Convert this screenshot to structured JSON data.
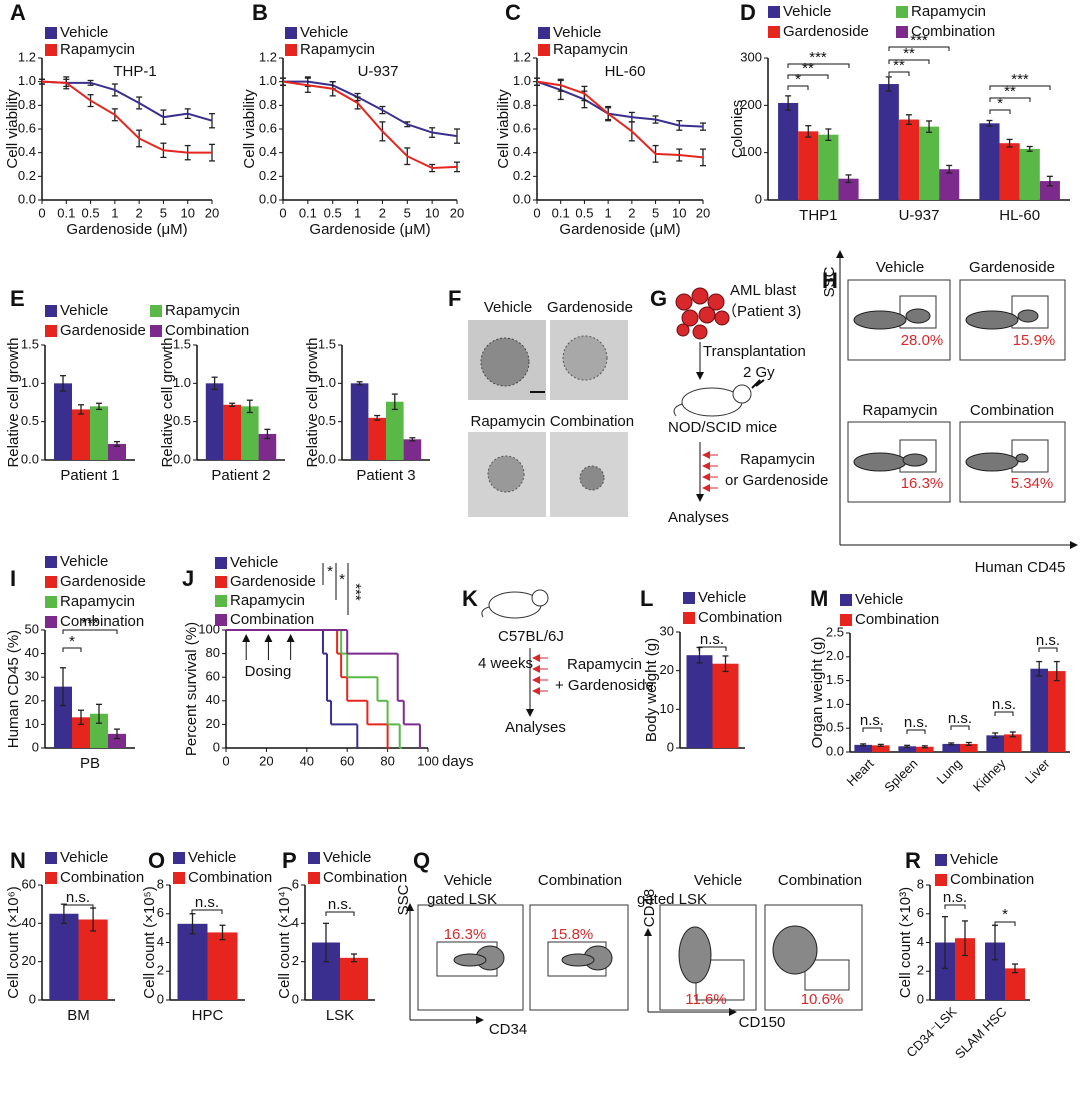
{
  "panel_labels": [
    "A",
    "B",
    "C",
    "D",
    "E",
    "F",
    "G",
    "H",
    "I",
    "J",
    "K",
    "L",
    "M",
    "N",
    "O",
    "P",
    "Q",
    "R"
  ],
  "chart_data": [
    {
      "type": "line",
      "title": "THP-1",
      "xlabel": "Gardenoside (μM)",
      "ylabel": "Cell viability",
      "categories": [
        "0",
        "0.1",
        "0.5",
        "1",
        "2",
        "5",
        "10",
        "20"
      ],
      "ylim": [
        0,
        1.2
      ],
      "yticks": [
        {
          "value": 0,
          "label": "0.0"
        },
        0.2,
        0.4,
        0.6,
        0.8,
        {
          "value": 1,
          "label": "1.0"
        },
        1.2
      ],
      "series": [
        {
          "name": "Vehicle",
          "color": "#3a2f8f",
          "values": [
            1.0,
            0.99,
            0.99,
            0.93,
            0.82,
            0.7,
            0.73,
            0.67
          ],
          "errors": [
            0.02,
            0.05,
            0.02,
            0.05,
            0.05,
            0.06,
            0.04,
            0.06
          ]
        },
        {
          "name": "Rapamycin",
          "color": "#e6251f",
          "values": [
            1.0,
            0.99,
            0.84,
            0.72,
            0.52,
            0.42,
            0.4,
            0.4
          ],
          "errors": [
            0.02,
            0.03,
            0.05,
            0.05,
            0.07,
            0.06,
            0.06,
            0.07
          ]
        }
      ]
    },
    {
      "type": "line",
      "title": "U-937",
      "xlabel": "Gardenoside (μM)",
      "ylabel": "Cell viability",
      "categories": [
        "0",
        "0.1",
        "0.5",
        "1",
        "2",
        "5",
        "10",
        "20"
      ],
      "ylim": [
        0,
        1.2
      ],
      "yticks": [
        {
          "value": 0,
          "label": "0.0"
        },
        0.2,
        0.4,
        0.6,
        0.8,
        {
          "value": 1,
          "label": "1.0"
        },
        1.2
      ],
      "series": [
        {
          "name": "Vehicle",
          "color": "#3a2f8f",
          "values": [
            1.0,
            1.0,
            0.97,
            0.87,
            0.76,
            0.64,
            0.57,
            0.54
          ],
          "errors": [
            0.03,
            0.04,
            0.03,
            0.03,
            0.03,
            0.02,
            0.04,
            0.06
          ]
        },
        {
          "name": "Rapamycin",
          "color": "#e6251f",
          "values": [
            1.0,
            0.97,
            0.94,
            0.82,
            0.58,
            0.37,
            0.27,
            0.28
          ],
          "errors": [
            0.03,
            0.06,
            0.06,
            0.05,
            0.08,
            0.07,
            0.03,
            0.04
          ]
        }
      ]
    },
    {
      "type": "line",
      "title": "HL-60",
      "xlabel": "Gardenoside (μM)",
      "ylabel": "Cell viability",
      "categories": [
        "0",
        "0.1",
        "0.5",
        "1",
        "2",
        "5",
        "10",
        "20"
      ],
      "ylim": [
        0,
        1.2
      ],
      "yticks": [
        {
          "value": 0,
          "label": "0.0"
        },
        0.2,
        0.4,
        0.6,
        0.8,
        {
          "value": 1,
          "label": "1.0"
        },
        1.2
      ],
      "series": [
        {
          "name": "Vehicle",
          "color": "#3a2f8f",
          "values": [
            1.0,
            0.93,
            0.85,
            0.73,
            0.7,
            0.68,
            0.63,
            0.62
          ],
          "errors": [
            0.03,
            0.08,
            0.07,
            0.05,
            0.04,
            0.03,
            0.04,
            0.03
          ]
        },
        {
          "name": "Rapamycin",
          "color": "#e6251f",
          "values": [
            1.0,
            0.97,
            0.9,
            0.73,
            0.58,
            0.39,
            0.38,
            0.36
          ],
          "errors": [
            0.03,
            0.05,
            0.06,
            0.06,
            0.08,
            0.07,
            0.05,
            0.07
          ]
        }
      ]
    },
    {
      "type": "bar",
      "ylabel": "Colonies",
      "categories": [
        "THP1",
        "U-937",
        "HL-60"
      ],
      "ylim": [
        0,
        300
      ],
      "yticks": [
        0,
        100,
        200,
        300
      ],
      "series": [
        {
          "name": "Vehicle",
          "color": "#3a2f8f",
          "values": [
            205,
            245,
            162
          ],
          "errors": [
            15,
            15,
            6
          ]
        },
        {
          "name": "Gardenoside",
          "color": "#e6251f",
          "values": [
            145,
            170,
            120
          ],
          "errors": [
            12,
            10,
            8
          ]
        },
        {
          "name": "Rapamycin",
          "color": "#5ab946",
          "values": [
            138,
            155,
            108
          ],
          "errors": [
            12,
            12,
            5
          ]
        },
        {
          "name": "Combination",
          "color": "#7c2b8c",
          "values": [
            45,
            65,
            40
          ],
          "errors": [
            8,
            8,
            10
          ]
        }
      ],
      "annotations": [
        "*",
        "**",
        "***",
        "**",
        "**",
        "***",
        "*",
        "**",
        "***"
      ]
    },
    {
      "type": "bar",
      "ylabel": "Relative cell growth",
      "categories": [
        "Patient 1"
      ],
      "ylim": [
        0,
        1.5
      ],
      "yticks": [
        {
          "value": 0,
          "label": "0.0"
        },
        0.5,
        {
          "value": 1,
          "label": "1.0"
        },
        1.5
      ],
      "series": [
        {
          "name": "Vehicle",
          "color": "#3a2f8f",
          "values": [
            1.0
          ],
          "errors": [
            0.1
          ]
        },
        {
          "name": "Gardenoside",
          "color": "#e6251f",
          "values": [
            0.66
          ],
          "errors": [
            0.06
          ]
        },
        {
          "name": "Rapamycin",
          "color": "#5ab946",
          "values": [
            0.7
          ],
          "errors": [
            0.04
          ]
        },
        {
          "name": "Combination",
          "color": "#7c2b8c",
          "values": [
            0.21
          ],
          "errors": [
            0.03
          ]
        }
      ]
    },
    {
      "type": "bar",
      "ylabel": "Relative cell growth",
      "categories": [
        "Patient 2"
      ],
      "ylim": [
        0,
        1.5
      ],
      "yticks": [
        {
          "value": 0,
          "label": "0.0"
        },
        0.5,
        {
          "value": 1,
          "label": "1.0"
        },
        1.5
      ],
      "series": [
        {
          "color": "#3a2f8f",
          "values": [
            1.0
          ],
          "errors": [
            0.08
          ]
        },
        {
          "color": "#e6251f",
          "values": [
            0.72
          ],
          "errors": [
            0.02
          ]
        },
        {
          "color": "#5ab946",
          "values": [
            0.7
          ],
          "errors": [
            0.08
          ]
        },
        {
          "color": "#7c2b8c",
          "values": [
            0.34
          ],
          "errors": [
            0.06
          ]
        }
      ]
    },
    {
      "type": "bar",
      "ylabel": "Relative cell growth",
      "categories": [
        "Patient 3"
      ],
      "ylim": [
        0,
        1.5
      ],
      "yticks": [
        {
          "value": 0,
          "label": "0.0"
        },
        0.5,
        {
          "value": 1,
          "label": "1.0"
        },
        1.5
      ],
      "series": [
        {
          "color": "#3a2f8f",
          "values": [
            1.0
          ],
          "errors": [
            0.02
          ]
        },
        {
          "color": "#e6251f",
          "values": [
            0.55
          ],
          "errors": [
            0.03
          ]
        },
        {
          "color": "#5ab946",
          "values": [
            0.76
          ],
          "errors": [
            0.1
          ]
        },
        {
          "color": "#7c2b8c",
          "values": [
            0.27
          ],
          "errors": [
            0.02
          ]
        }
      ]
    },
    {
      "type": "bar",
      "ylabel": "Human CD45 (%)",
      "categories": [
        "PB"
      ],
      "ylim": [
        0,
        50
      ],
      "yticks": [
        0,
        10,
        20,
        30,
        40,
        50
      ],
      "series": [
        {
          "name": "Vehicle",
          "color": "#3a2f8f",
          "values": [
            26
          ],
          "errors": [
            8
          ]
        },
        {
          "name": "Gardenoside",
          "color": "#e6251f",
          "values": [
            13
          ],
          "errors": [
            3
          ]
        },
        {
          "name": "Rapamycin",
          "color": "#5ab946",
          "values": [
            14.5
          ],
          "errors": [
            4
          ]
        },
        {
          "name": "Combination",
          "color": "#7c2b8c",
          "values": [
            6
          ],
          "errors": [
            2
          ]
        }
      ],
      "annotations": [
        "*",
        "***"
      ]
    },
    {
      "type": "step",
      "xlabel": "days",
      "ylabel": "Percent survival (%)",
      "xlim": [
        0,
        100
      ],
      "xticks": [
        0,
        20,
        40,
        60,
        80,
        100
      ],
      "ylim": [
        0,
        100
      ],
      "yticks": [
        0,
        20,
        40,
        60,
        80,
        100
      ],
      "series": [
        {
          "name": "Vehicle",
          "color": "#3a2f8f",
          "x": [
            0,
            48,
            50,
            52,
            65
          ],
          "values": [
            100,
            80,
            40,
            20,
            0
          ]
        },
        {
          "name": "Gardenoside",
          "color": "#e6251f",
          "x": [
            0,
            55,
            57,
            60,
            70,
            80
          ],
          "values": [
            100,
            80,
            60,
            40,
            20,
            0
          ]
        },
        {
          "name": "Rapamycin",
          "color": "#5ab946",
          "x": [
            0,
            57,
            60,
            75,
            80,
            86
          ],
          "values": [
            100,
            80,
            60,
            40,
            20,
            0
          ]
        },
        {
          "name": "Combination",
          "color": "#7c2b8c",
          "x": [
            0,
            60,
            85,
            88,
            96
          ],
          "values": [
            100,
            80,
            40,
            20,
            0
          ]
        }
      ],
      "annotations": [
        "*",
        "*",
        "***",
        "Dosing"
      ]
    },
    {
      "type": "bar",
      "ylabel": "Body weight (g)",
      "categories": [
        null
      ],
      "ylim": [
        0,
        30
      ],
      "yticks": [
        0,
        10,
        20,
        30
      ],
      "series": [
        {
          "name": "Vehicle",
          "color": "#3a2f8f",
          "values": [
            24
          ],
          "errors": [
            2
          ]
        },
        {
          "name": "Combination",
          "color": "#e6251f",
          "values": [
            21.8
          ],
          "errors": [
            2
          ]
        }
      ],
      "annotations": [
        "n.s."
      ]
    },
    {
      "type": "bar",
      "ylabel": "Organ weight (g)",
      "categories": [
        "Heart",
        "Spleen",
        "Lung",
        "Kidney",
        "Liver"
      ],
      "ylim": [
        0,
        2.5
      ],
      "yticks": [
        {
          "value": 0,
          "label": "0.0"
        },
        0.5,
        {
          "value": 1,
          "label": "1.0"
        },
        1.5,
        {
          "value": 2,
          "label": "2.0"
        },
        2.5
      ],
      "series": [
        {
          "name": "Vehicle",
          "color": "#3a2f8f",
          "values": [
            0.15,
            0.12,
            0.17,
            0.35,
            1.75
          ],
          "errors": [
            0.02,
            0.02,
            0.02,
            0.05,
            0.15
          ]
        },
        {
          "name": "Combination",
          "color": "#e6251f",
          "values": [
            0.14,
            0.11,
            0.17,
            0.37,
            1.7
          ],
          "errors": [
            0.02,
            0.02,
            0.03,
            0.05,
            0.2
          ]
        }
      ],
      "annotations": [
        "n.s.",
        "n.s.",
        "n.s.",
        "n.s.",
        "n.s."
      ]
    },
    {
      "type": "bar",
      "ylabel": "Cell count (×10⁶)",
      "categories": [
        "BM"
      ],
      "ylim": [
        0,
        60
      ],
      "yticks": [
        0,
        20,
        40,
        60
      ],
      "series": [
        {
          "name": "Vehicle",
          "color": "#3a2f8f",
          "values": [
            45
          ],
          "errors": [
            5
          ]
        },
        {
          "name": "Combination",
          "color": "#e6251f",
          "values": [
            42
          ],
          "errors": [
            6
          ]
        }
      ],
      "annotations": [
        "n.s."
      ]
    },
    {
      "type": "bar",
      "ylabel": "Cell count (×10⁵)",
      "categories": [
        "HPC"
      ],
      "ylim": [
        0,
        8
      ],
      "yticks": [
        0,
        2,
        4,
        6,
        8
      ],
      "series": [
        {
          "name": "Vehicle",
          "color": "#3a2f8f",
          "values": [
            5.3
          ],
          "errors": [
            0.7
          ]
        },
        {
          "name": "Combination",
          "color": "#e6251f",
          "values": [
            4.7
          ],
          "errors": [
            0.5
          ]
        }
      ],
      "annotations": [
        "n.s."
      ]
    },
    {
      "type": "bar",
      "ylabel": "Cell count (×10⁴)",
      "categories": [
        "LSK"
      ],
      "ylim": [
        0,
        6
      ],
      "yticks": [
        0,
        2,
        4,
        6
      ],
      "series": [
        {
          "name": "Vehicle",
          "color": "#3a2f8f",
          "values": [
            3.0
          ],
          "errors": [
            1.0
          ]
        },
        {
          "name": "Combination",
          "color": "#e6251f",
          "values": [
            2.2
          ],
          "errors": [
            0.2
          ]
        }
      ],
      "annotations": [
        "n.s."
      ]
    },
    {
      "type": "bar",
      "ylabel": "Cell count (×10³)",
      "categories": [
        "CD34⁻LSK",
        "SLAM HSC"
      ],
      "ylim": [
        0,
        8
      ],
      "yticks": [
        0,
        2,
        4,
        6,
        8
      ],
      "series": [
        {
          "name": "Vehicle",
          "color": "#3a2f8f",
          "values": [
            4.0,
            4.0
          ],
          "errors": [
            1.8,
            1.2
          ]
        },
        {
          "name": "Combination",
          "color": "#e6251f",
          "values": [
            4.3,
            2.2
          ],
          "errors": [
            1.2,
            0.3
          ]
        }
      ],
      "annotations": [
        "n.s.",
        "*"
      ]
    }
  ],
  "panel_f": {
    "labels": [
      "Vehicle",
      "Gardenoside",
      "Rapamycin",
      "Combination"
    ]
  },
  "panel_g": {
    "cells": "AML blast",
    "patient": "（Patient 3)",
    "step1": "Transplantation",
    "dose": "2 Gy",
    "mice": "NOD/SCID mice",
    "drug1": "Rapamycin",
    "drug2": "or Gardenoside",
    "end": "Analyses"
  },
  "panel_h": {
    "y_axis": "SSC",
    "x_axis": "Human CD45",
    "plots": [
      {
        "label": "Vehicle",
        "percent": "28.0%"
      },
      {
        "label": "Gardenoside",
        "percent": "15.9%"
      },
      {
        "label": "Rapamycin",
        "percent": "16.3%"
      },
      {
        "label": "Combination",
        "percent": "5.34%"
      }
    ]
  },
  "panel_k": {
    "mouse": "C57BL/6J",
    "time": "4 weeks",
    "drug1": "Rapamycin",
    "drug2": "+ Gardenoside",
    "end": "Analyses"
  },
  "panel_q": {
    "left": {
      "group1": "Vehicle",
      "gate1": "gated LSK",
      "group2": "Combination",
      "y_axis": "SSC",
      "x_axis": "CD34",
      "percent1": "16.3%",
      "percent2": "15.8%"
    },
    "right": {
      "group1": "Vehicle",
      "gate1": "gated LSK",
      "group2": "Combination",
      "y_axis": "CD48",
      "x_axis": "CD150",
      "percent1": "11.6%",
      "percent2": "10.6%"
    }
  }
}
